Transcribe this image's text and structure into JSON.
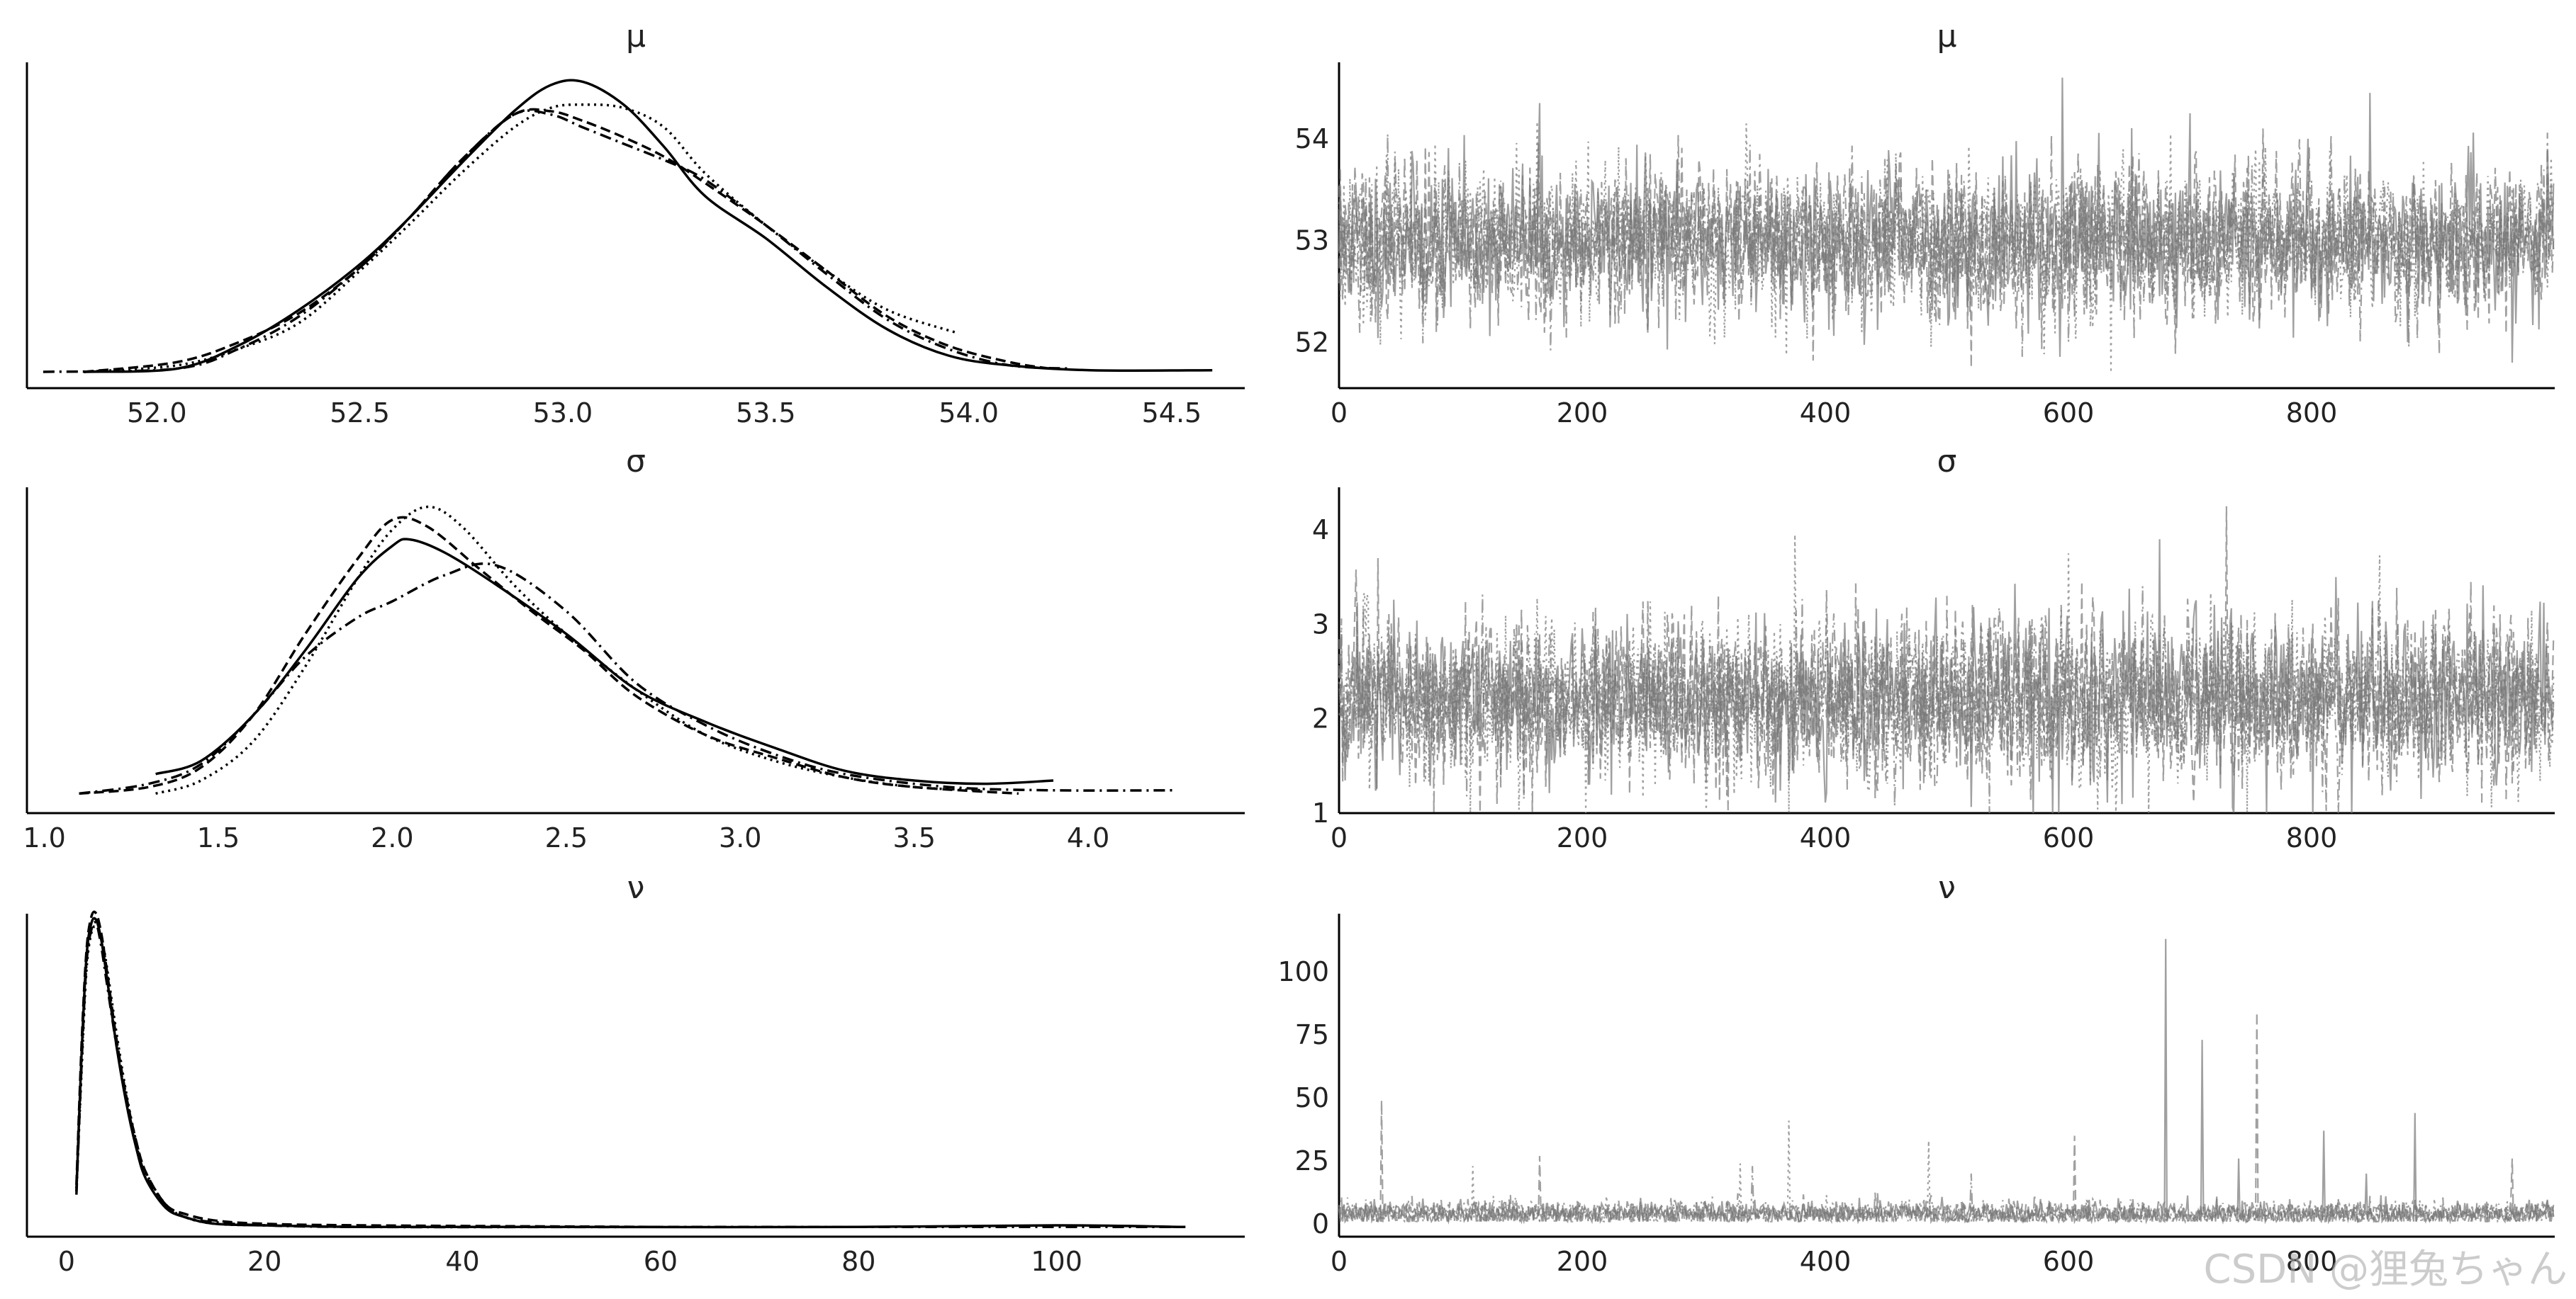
{
  "chart_data": [
    {
      "type": "line",
      "panel": "density",
      "title": "μ",
      "x_ticks": [
        52.0,
        52.5,
        53.0,
        53.5,
        54.0,
        54.5
      ],
      "x_tick_labels": [
        "52.0",
        "52.5",
        "53.0",
        "53.5",
        "54.0",
        "54.5"
      ],
      "xlim": [
        51.68,
        54.68
      ],
      "ylim": [
        0,
        1.0
      ],
      "series": [
        {
          "style": "solid",
          "color": "#000000",
          "x": [
            51.82,
            52.05,
            52.2,
            52.35,
            52.5,
            52.62,
            52.75,
            52.88,
            52.97,
            53.05,
            53.15,
            53.25,
            53.35,
            53.5,
            53.65,
            53.8,
            53.95,
            54.1,
            54.3,
            54.6
          ],
          "y": [
            0.05,
            0.06,
            0.13,
            0.24,
            0.38,
            0.52,
            0.69,
            0.85,
            0.93,
            0.94,
            0.87,
            0.74,
            0.59,
            0.46,
            0.31,
            0.18,
            0.1,
            0.07,
            0.055,
            0.055
          ]
        },
        {
          "style": "dotted",
          "color": "#000000",
          "x": [
            51.82,
            52.05,
            52.2,
            52.35,
            52.5,
            52.62,
            52.75,
            52.88,
            52.97,
            53.05,
            53.15,
            53.25,
            53.35,
            53.5,
            53.65,
            53.8,
            53.97
          ],
          "y": [
            0.05,
            0.07,
            0.12,
            0.2,
            0.36,
            0.5,
            0.66,
            0.8,
            0.86,
            0.87,
            0.86,
            0.8,
            0.66,
            0.5,
            0.36,
            0.24,
            0.17
          ]
        },
        {
          "style": "dashed",
          "color": "#000000",
          "x": [
            51.82,
            52.05,
            52.2,
            52.35,
            52.5,
            52.62,
            52.75,
            52.88,
            52.97,
            53.05,
            53.15,
            53.25,
            53.35,
            53.5,
            53.65,
            53.8,
            53.95,
            54.1,
            54.2
          ],
          "y": [
            0.05,
            0.08,
            0.14,
            0.23,
            0.37,
            0.52,
            0.7,
            0.84,
            0.85,
            0.82,
            0.77,
            0.71,
            0.63,
            0.5,
            0.36,
            0.22,
            0.13,
            0.08,
            0.06
          ]
        },
        {
          "style": "dashdot",
          "color": "#000000",
          "x": [
            51.72,
            52.05,
            52.2,
            52.35,
            52.5,
            52.62,
            52.75,
            52.88,
            52.97,
            53.05,
            53.15,
            53.25,
            53.35,
            53.5,
            53.65,
            53.8,
            53.95,
            54.1,
            54.25
          ],
          "y": [
            0.05,
            0.06,
            0.12,
            0.22,
            0.37,
            0.52,
            0.7,
            0.84,
            0.84,
            0.8,
            0.75,
            0.7,
            0.64,
            0.5,
            0.35,
            0.21,
            0.12,
            0.07,
            0.06
          ]
        }
      ]
    },
    {
      "type": "line",
      "panel": "trace",
      "title": "μ",
      "x_ticks": [
        0,
        200,
        400,
        600,
        800
      ],
      "x_tick_labels": [
        "0",
        "200",
        "400",
        "600",
        "800"
      ],
      "y_ticks": [
        52,
        53,
        54
      ],
      "y_tick_labels": [
        "52",
        "53",
        "54"
      ],
      "xlim": [
        0,
        1000
      ],
      "ylim": [
        51.55,
        54.75
      ],
      "series": [
        {
          "style": "solid",
          "color": "#777777",
          "center": 53.0,
          "spread": 0.38,
          "seed": 11,
          "spikes": [
            [
              165,
              54.35
            ],
            [
              250,
              52.3
            ],
            [
              595,
              54.6
            ],
            [
              700,
              54.25
            ],
            [
              848,
              54.45
            ],
            [
              965,
              51.8
            ]
          ]
        },
        {
          "style": "dotted",
          "color": "#777777",
          "center": 53.0,
          "spread": 0.38,
          "seed": 23,
          "spikes": [
            [
              335,
              54.15
            ],
            [
              430,
              52.1
            ],
            [
              635,
              51.7
            ]
          ]
        },
        {
          "style": "dashed",
          "color": "#777777",
          "center": 53.0,
          "spread": 0.38,
          "seed": 37,
          "spikes": [
            [
              520,
              51.75
            ],
            [
              760,
              54.1
            ]
          ]
        },
        {
          "style": "dashdot",
          "color": "#777777",
          "center": 53.0,
          "spread": 0.38,
          "seed": 53,
          "spikes": [
            [
              40,
              54.05
            ],
            [
              880,
              51.95
            ]
          ]
        }
      ]
    },
    {
      "type": "line",
      "panel": "density",
      "title": "σ",
      "x_ticks": [
        1.0,
        1.5,
        2.0,
        2.5,
        3.0,
        3.5,
        4.0
      ],
      "x_tick_labels": [
        "1.0",
        "1.5",
        "2.0",
        "2.5",
        "3.0",
        "3.5",
        "4.0"
      ],
      "xlim": [
        0.95,
        4.45
      ],
      "ylim": [
        0,
        1.0
      ],
      "series": [
        {
          "style": "solid",
          "color": "#000000",
          "x": [
            1.32,
            1.45,
            1.6,
            1.75,
            1.9,
            2.0,
            2.05,
            2.15,
            2.3,
            2.5,
            2.7,
            2.9,
            3.1,
            3.3,
            3.5,
            3.7,
            3.9
          ],
          "y": [
            0.12,
            0.16,
            0.3,
            0.5,
            0.72,
            0.82,
            0.84,
            0.8,
            0.7,
            0.55,
            0.38,
            0.28,
            0.2,
            0.13,
            0.1,
            0.09,
            0.1
          ]
        },
        {
          "style": "dotted",
          "color": "#000000",
          "x": [
            1.32,
            1.45,
            1.6,
            1.75,
            1.9,
            2.0,
            2.1,
            2.2,
            2.35,
            2.5,
            2.7,
            2.9,
            3.1,
            3.3,
            3.5,
            3.7
          ],
          "y": [
            0.06,
            0.1,
            0.22,
            0.45,
            0.72,
            0.87,
            0.94,
            0.88,
            0.7,
            0.55,
            0.38,
            0.24,
            0.16,
            0.11,
            0.08,
            0.07
          ]
        },
        {
          "style": "dashed",
          "color": "#000000",
          "x": [
            1.1,
            1.3,
            1.45,
            1.6,
            1.75,
            1.9,
            2.0,
            2.1,
            2.25,
            2.4,
            2.55,
            2.7,
            2.9,
            3.1,
            3.3,
            3.5,
            3.8
          ],
          "y": [
            0.06,
            0.08,
            0.14,
            0.3,
            0.55,
            0.78,
            0.9,
            0.88,
            0.75,
            0.62,
            0.5,
            0.36,
            0.24,
            0.17,
            0.11,
            0.08,
            0.06
          ]
        },
        {
          "style": "dashdot",
          "color": "#000000",
          "x": [
            1.1,
            1.3,
            1.45,
            1.6,
            1.75,
            1.9,
            2.0,
            2.15,
            2.3,
            2.5,
            2.7,
            2.9,
            3.1,
            3.3,
            3.6,
            3.9,
            4.25
          ],
          "y": [
            0.06,
            0.09,
            0.15,
            0.3,
            0.48,
            0.6,
            0.65,
            0.73,
            0.76,
            0.62,
            0.4,
            0.27,
            0.18,
            0.12,
            0.08,
            0.07,
            0.07
          ]
        }
      ]
    },
    {
      "type": "line",
      "panel": "trace",
      "title": "σ",
      "x_ticks": [
        0,
        200,
        400,
        600,
        800
      ],
      "x_tick_labels": [
        "0",
        "200",
        "400",
        "600",
        "800"
      ],
      "y_ticks": [
        1,
        2,
        3,
        4
      ],
      "y_tick_labels": [
        "1",
        "2",
        "3",
        "4"
      ],
      "xlim": [
        0,
        1000
      ],
      "ylim": [
        1.0,
        4.45
      ],
      "series": [
        {
          "style": "solid",
          "color": "#777777",
          "center": 2.2,
          "spread": 0.45,
          "seed": 71,
          "spikes": [
            [
              675,
              3.9
            ],
            [
              820,
              3.5
            ],
            [
              890,
              1.15
            ]
          ]
        },
        {
          "style": "dotted",
          "color": "#777777",
          "center": 2.2,
          "spread": 0.45,
          "seed": 83,
          "spikes": [
            [
              375,
              3.95
            ],
            [
              325,
              1.2
            ],
            [
              600,
              3.75
            ]
          ]
        },
        {
          "style": "dashed",
          "color": "#777777",
          "center": 2.2,
          "spread": 0.45,
          "seed": 97,
          "spikes": [
            [
              32,
              3.7
            ],
            [
              730,
              4.25
            ],
            [
              205,
              1.3
            ]
          ]
        },
        {
          "style": "dashdot",
          "color": "#777777",
          "center": 2.2,
          "spread": 0.45,
          "seed": 109,
          "spikes": [
            [
              500,
              3.3
            ],
            [
              950,
              3.2
            ]
          ]
        }
      ]
    },
    {
      "type": "line",
      "panel": "density",
      "title": "ν",
      "x_ticks": [
        0,
        20,
        40,
        60,
        80,
        100
      ],
      "x_tick_labels": [
        "0",
        "20",
        "40",
        "60",
        "80",
        "100"
      ],
      "xlim": [
        -4,
        119
      ],
      "ylim": [
        0,
        1.0
      ],
      "series": [
        {
          "style": "solid",
          "color": "#000000",
          "x": [
            1.0,
            1.5,
            2.0,
            2.5,
            3.0,
            3.5,
            4.0,
            5.0,
            6.0,
            7.0,
            8.0,
            10.0,
            12.0,
            15.0,
            20.0,
            30.0,
            50.0,
            80.0,
            100.0,
            113.0
          ],
          "y": [
            0.14,
            0.55,
            0.86,
            0.97,
            0.98,
            0.92,
            0.82,
            0.6,
            0.42,
            0.28,
            0.18,
            0.09,
            0.06,
            0.04,
            0.035,
            0.03,
            0.03,
            0.03,
            0.035,
            0.03
          ]
        },
        {
          "style": "dotted",
          "color": "#000000",
          "x": [
            1.0,
            1.5,
            2.0,
            2.5,
            3.0,
            3.5,
            4.0,
            5.0,
            6.0,
            7.0,
            8.0,
            10.0,
            12.0,
            15.0,
            20.0,
            30.0
          ],
          "y": [
            0.15,
            0.5,
            0.82,
            0.94,
            0.96,
            0.93,
            0.85,
            0.64,
            0.45,
            0.3,
            0.2,
            0.1,
            0.06,
            0.04,
            0.035,
            0.03
          ]
        },
        {
          "style": "dashed",
          "color": "#000000",
          "x": [
            1.0,
            1.5,
            2.0,
            2.5,
            3.0,
            3.5,
            4.0,
            5.0,
            6.0,
            7.0,
            8.0,
            10.0,
            12.0,
            15.0,
            20.0,
            30.0,
            60.0
          ],
          "y": [
            0.16,
            0.58,
            0.88,
            0.99,
            1.0,
            0.94,
            0.84,
            0.62,
            0.44,
            0.3,
            0.2,
            0.1,
            0.07,
            0.05,
            0.04,
            0.035,
            0.03
          ]
        },
        {
          "style": "dashdot",
          "color": "#000000",
          "x": [
            1.0,
            1.5,
            2.0,
            2.5,
            3.0,
            3.5,
            4.0,
            5.0,
            6.0,
            7.0,
            8.0,
            10.0,
            12.0,
            15.0,
            20.0,
            30.0,
            60.0,
            100.0,
            113.0
          ],
          "y": [
            0.13,
            0.52,
            0.84,
            0.95,
            0.97,
            0.9,
            0.8,
            0.6,
            0.43,
            0.29,
            0.19,
            0.1,
            0.06,
            0.045,
            0.035,
            0.03,
            0.03,
            0.03,
            0.03
          ]
        }
      ]
    },
    {
      "type": "line",
      "panel": "trace",
      "title": "ν",
      "x_ticks": [
        0,
        200,
        400,
        600,
        800
      ],
      "x_tick_labels": [
        "0",
        "200",
        "400",
        "600",
        "800"
      ],
      "y_ticks": [
        0,
        25,
        50,
        75,
        100
      ],
      "y_tick_labels": [
        "0",
        "25",
        "50",
        "75",
        "100"
      ],
      "xlim": [
        0,
        1000
      ],
      "ylim": [
        -5,
        123
      ],
      "series": [
        {
          "style": "solid",
          "color": "#777777",
          "center": 4.0,
          "spread": 2.5,
          "seed": 131,
          "spikes": [
            [
              680,
              113
            ],
            [
              710,
              73
            ],
            [
              740,
              26
            ],
            [
              810,
              37
            ],
            [
              845,
              20
            ],
            [
              885,
              44
            ]
          ]
        },
        {
          "style": "dotted",
          "color": "#777777",
          "center": 4.0,
          "spread": 2.5,
          "seed": 149,
          "spikes": [
            [
              370,
              41
            ],
            [
              485,
              33
            ],
            [
              330,
              24
            ],
            [
              110,
              23
            ]
          ]
        },
        {
          "style": "dashed",
          "color": "#777777",
          "center": 4.0,
          "spread": 2.5,
          "seed": 163,
          "spikes": [
            [
              35,
              49
            ],
            [
              605,
              35
            ],
            [
              755,
              84
            ],
            [
              165,
              27
            ],
            [
              965,
              26
            ]
          ]
        },
        {
          "style": "dashdot",
          "color": "#777777",
          "center": 4.0,
          "spread": 2.5,
          "seed": 181,
          "spikes": [
            [
              340,
              23
            ],
            [
              520,
              20
            ]
          ]
        }
      ]
    }
  ],
  "watermark": "CSDN @狸兔ちゃん"
}
